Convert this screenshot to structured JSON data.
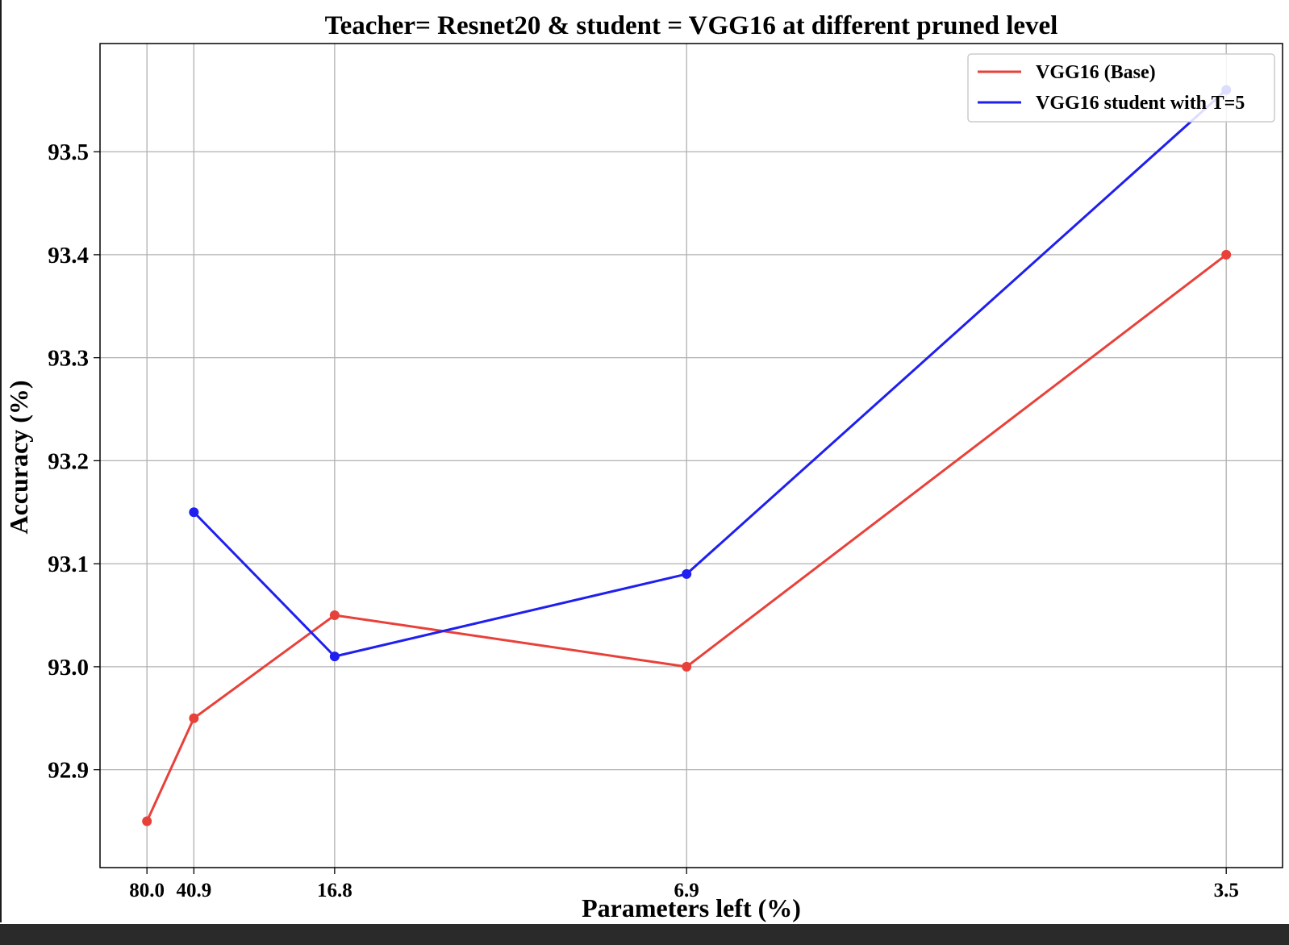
{
  "chart_data": {
    "type": "line",
    "title": "Teacher= Resnet20 & student = VGG16 at different pruned level",
    "xlabel": "Parameters left (%)",
    "ylabel": "Accuracy (%)",
    "categories": [
      "80.0",
      "40.9",
      "16.8",
      "6.9",
      "3.5"
    ],
    "x_positions": [
      1,
      2,
      5,
      12.5,
      24
    ],
    "xlim": [
      0,
      25.2
    ],
    "ylim": [
      92.805,
      93.605
    ],
    "yticks": [
      "92.9",
      "93.0",
      "93.1",
      "93.2",
      "93.3",
      "93.4",
      "93.5"
    ],
    "grid": true,
    "legend_position": "top-right",
    "series": [
      {
        "name": "VGG16 (Base)",
        "color": "#e8413a",
        "x": [
          1,
          2,
          5,
          12.5,
          24
        ],
        "values": [
          92.85,
          92.95,
          93.05,
          93.0,
          93.4
        ]
      },
      {
        "name": "VGG16 student with T=5",
        "color": "#1f1fef",
        "x": [
          2,
          5,
          12.5,
          24
        ],
        "values": [
          93.15,
          93.01,
          93.09,
          93.56
        ]
      }
    ]
  }
}
